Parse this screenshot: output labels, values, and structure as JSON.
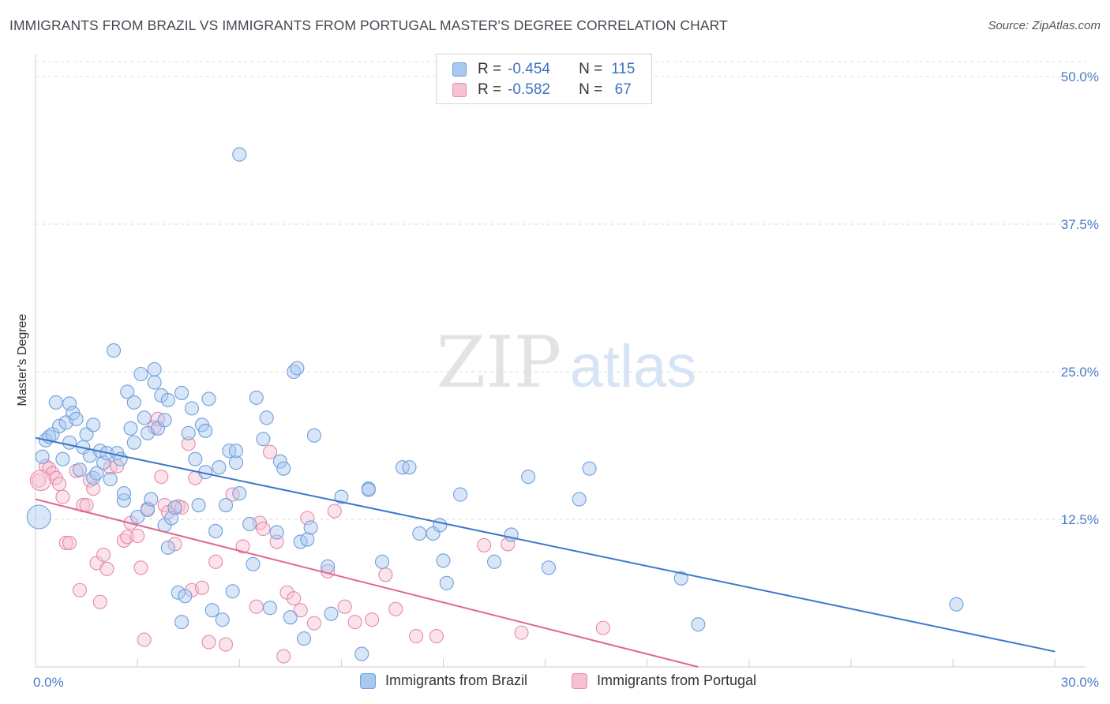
{
  "title": "IMMIGRANTS FROM BRAZIL VS IMMIGRANTS FROM PORTUGAL MASTER'S DEGREE CORRELATION CHART",
  "source": "Source: ZipAtlas.com",
  "watermark": {
    "zip": "ZIP",
    "atlas": "atlas"
  },
  "legend": {
    "r_label": "R =",
    "n_label": "N =",
    "rows": [
      {
        "r": "-0.454",
        "n": "115",
        "color": "#a9c8ef",
        "border": "#6f9fdc"
      },
      {
        "r": "-0.582",
        "n": "67",
        "color": "#f6c1d2",
        "border": "#e58aa8"
      }
    ]
  },
  "bottom_legend": [
    "Immigrants from Brazil",
    "Immigrants from Portugal"
  ],
  "chart_data": {
    "type": "scatter",
    "ylabel": "Master's Degree",
    "xlim": [
      0,
      30
    ],
    "ylim": [
      0,
      50
    ],
    "x_ticks": [
      "0.0%",
      "30.0%"
    ],
    "y_ticks": [
      {
        "v": 12.5,
        "label": "12.5%"
      },
      {
        "v": 25,
        "label": "25.0%"
      },
      {
        "v": 37.5,
        "label": "37.5%"
      },
      {
        "v": 50,
        "label": "50.0%"
      }
    ],
    "colors": {
      "brazil": "#6f9fdc",
      "brazil_fill": "#a9c8ef",
      "brazil_line": "#3b78c9",
      "portugal": "#e58aa8",
      "portugal_fill": "#f6c1d2",
      "portugal_line": "#e0688f"
    },
    "series": [
      {
        "name": "Immigrants from Brazil",
        "trend": [
          [
            0,
            19.4
          ],
          [
            30,
            1.3
          ]
        ],
        "points": [
          [
            0.2,
            17.8
          ],
          [
            0.3,
            19.2
          ],
          [
            0.4,
            19.5
          ],
          [
            0.5,
            19.7
          ],
          [
            0.6,
            22.4
          ],
          [
            0.7,
            20.4
          ],
          [
            0.8,
            17.6
          ],
          [
            0.9,
            20.7
          ],
          [
            1.0,
            22.3
          ],
          [
            1.0,
            19.0
          ],
          [
            1.1,
            21.5
          ],
          [
            1.2,
            21.0
          ],
          [
            1.3,
            16.7
          ],
          [
            1.4,
            18.6
          ],
          [
            1.5,
            19.7
          ],
          [
            1.6,
            17.9
          ],
          [
            1.7,
            16.0
          ],
          [
            1.7,
            20.5
          ],
          [
            1.8,
            16.4
          ],
          [
            1.9,
            18.3
          ],
          [
            2.0,
            17.3
          ],
          [
            2.1,
            18.1
          ],
          [
            2.2,
            15.9
          ],
          [
            2.3,
            26.8
          ],
          [
            2.4,
            18.1
          ],
          [
            2.5,
            17.6
          ],
          [
            2.6,
            14.1
          ],
          [
            2.6,
            14.7
          ],
          [
            2.7,
            23.3
          ],
          [
            2.8,
            20.2
          ],
          [
            2.9,
            22.4
          ],
          [
            2.9,
            19.0
          ],
          [
            3.0,
            12.7
          ],
          [
            3.1,
            24.8
          ],
          [
            3.2,
            21.1
          ],
          [
            3.3,
            19.8
          ],
          [
            3.3,
            13.3
          ],
          [
            3.4,
            14.2
          ],
          [
            3.5,
            24.1
          ],
          [
            3.5,
            25.2
          ],
          [
            3.6,
            20.2
          ],
          [
            3.7,
            23.0
          ],
          [
            3.8,
            20.9
          ],
          [
            3.8,
            12.0
          ],
          [
            3.9,
            22.6
          ],
          [
            3.9,
            10.1
          ],
          [
            4.0,
            12.6
          ],
          [
            4.1,
            13.5
          ],
          [
            4.2,
            6.3
          ],
          [
            4.3,
            23.2
          ],
          [
            4.3,
            3.8
          ],
          [
            4.4,
            6.0
          ],
          [
            4.5,
            19.8
          ],
          [
            4.6,
            21.9
          ],
          [
            4.7,
            17.6
          ],
          [
            4.8,
            13.7
          ],
          [
            4.9,
            20.5
          ],
          [
            5.0,
            20.0
          ],
          [
            5.0,
            16.5
          ],
          [
            5.1,
            22.7
          ],
          [
            5.2,
            4.8
          ],
          [
            5.3,
            11.5
          ],
          [
            5.4,
            16.9
          ],
          [
            5.5,
            4.0
          ],
          [
            5.6,
            13.7
          ],
          [
            5.7,
            18.3
          ],
          [
            5.8,
            6.4
          ],
          [
            5.9,
            17.3
          ],
          [
            5.9,
            18.3
          ],
          [
            6.0,
            14.7
          ],
          [
            6.0,
            43.4
          ],
          [
            6.3,
            12.1
          ],
          [
            6.4,
            8.7
          ],
          [
            6.5,
            22.8
          ],
          [
            6.7,
            19.3
          ],
          [
            6.8,
            21.1
          ],
          [
            6.9,
            5.0
          ],
          [
            7.1,
            11.4
          ],
          [
            7.2,
            17.4
          ],
          [
            7.3,
            16.8
          ],
          [
            7.5,
            4.2
          ],
          [
            7.6,
            25.0
          ],
          [
            7.7,
            25.3
          ],
          [
            7.8,
            10.6
          ],
          [
            7.9,
            2.4
          ],
          [
            8.0,
            10.8
          ],
          [
            8.1,
            11.8
          ],
          [
            8.2,
            19.6
          ],
          [
            8.6,
            8.5
          ],
          [
            8.7,
            4.5
          ],
          [
            9.0,
            14.4
          ],
          [
            9.6,
            1.1
          ],
          [
            9.8,
            15.1
          ],
          [
            9.8,
            15.0
          ],
          [
            10.2,
            8.9
          ],
          [
            10.8,
            16.9
          ],
          [
            11.0,
            16.9
          ],
          [
            11.3,
            11.3
          ],
          [
            11.7,
            11.3
          ],
          [
            11.9,
            12.0
          ],
          [
            12.0,
            9.0
          ],
          [
            12.1,
            7.1
          ],
          [
            12.5,
            14.6
          ],
          [
            13.5,
            8.9
          ],
          [
            14.0,
            11.2
          ],
          [
            14.5,
            16.1
          ],
          [
            15.1,
            8.4
          ],
          [
            16.0,
            14.2
          ],
          [
            16.3,
            16.8
          ],
          [
            19.0,
            7.5
          ],
          [
            19.5,
            3.6
          ],
          [
            27.1,
            5.3
          ],
          [
            0.1,
            12.7
          ]
        ]
      },
      {
        "name": "Immigrants from Portugal",
        "trend": [
          [
            0,
            14.2
          ],
          [
            19.5,
            0
          ]
        ],
        "points": [
          [
            0.1,
            15.8
          ],
          [
            0.3,
            17.0
          ],
          [
            0.4,
            16.8
          ],
          [
            0.5,
            16.4
          ],
          [
            0.6,
            16.0
          ],
          [
            0.7,
            15.5
          ],
          [
            0.8,
            14.4
          ],
          [
            0.9,
            10.5
          ],
          [
            1.0,
            10.5
          ],
          [
            1.2,
            16.6
          ],
          [
            1.3,
            6.5
          ],
          [
            1.4,
            13.7
          ],
          [
            1.5,
            13.7
          ],
          [
            1.6,
            15.8
          ],
          [
            1.7,
            15.1
          ],
          [
            1.8,
            8.8
          ],
          [
            1.9,
            5.5
          ],
          [
            2.0,
            9.5
          ],
          [
            2.1,
            8.3
          ],
          [
            2.2,
            16.9
          ],
          [
            2.4,
            17.0
          ],
          [
            2.6,
            10.7
          ],
          [
            2.7,
            11.0
          ],
          [
            2.8,
            12.2
          ],
          [
            3.0,
            11.1
          ],
          [
            3.1,
            8.4
          ],
          [
            3.2,
            2.3
          ],
          [
            3.3,
            13.4
          ],
          [
            3.5,
            20.3
          ],
          [
            3.6,
            21.0
          ],
          [
            3.7,
            16.1
          ],
          [
            3.8,
            13.7
          ],
          [
            3.9,
            13.1
          ],
          [
            4.1,
            10.4
          ],
          [
            4.2,
            13.6
          ],
          [
            4.3,
            13.5
          ],
          [
            4.5,
            18.9
          ],
          [
            4.6,
            6.5
          ],
          [
            4.7,
            16.0
          ],
          [
            4.9,
            6.7
          ],
          [
            5.1,
            2.1
          ],
          [
            5.3,
            8.9
          ],
          [
            5.6,
            1.9
          ],
          [
            5.8,
            14.6
          ],
          [
            6.1,
            10.2
          ],
          [
            6.5,
            5.1
          ],
          [
            6.6,
            12.2
          ],
          [
            6.7,
            11.7
          ],
          [
            6.9,
            18.2
          ],
          [
            7.1,
            10.6
          ],
          [
            7.3,
            0.9
          ],
          [
            7.4,
            6.3
          ],
          [
            7.6,
            5.8
          ],
          [
            7.8,
            4.8
          ],
          [
            8.0,
            12.6
          ],
          [
            8.2,
            3.7
          ],
          [
            8.6,
            8.1
          ],
          [
            8.8,
            13.2
          ],
          [
            9.1,
            5.1
          ],
          [
            9.4,
            3.8
          ],
          [
            9.9,
            4.0
          ],
          [
            10.3,
            7.8
          ],
          [
            10.6,
            4.9
          ],
          [
            11.2,
            2.6
          ],
          [
            11.8,
            2.6
          ],
          [
            13.2,
            10.3
          ],
          [
            13.9,
            10.4
          ],
          [
            14.3,
            2.9
          ],
          [
            16.7,
            3.3
          ]
        ]
      }
    ]
  }
}
